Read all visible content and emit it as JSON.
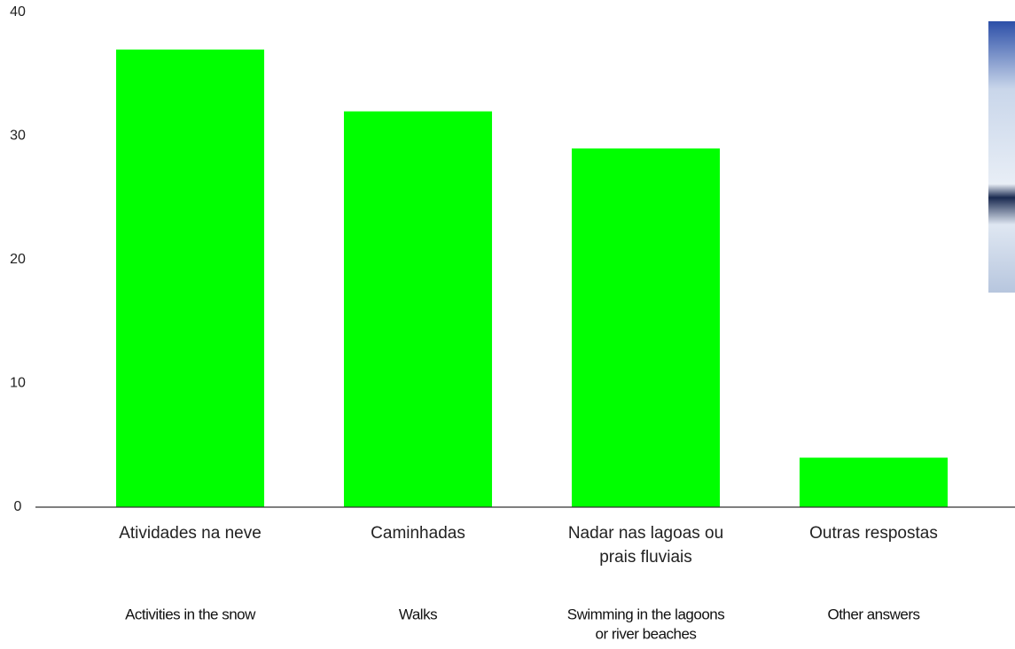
{
  "chart_data": {
    "type": "bar",
    "categories": [
      [
        "Atividades na neve"
      ],
      [
        "Caminhadas"
      ],
      [
        "Nadar nas lagoas ou",
        "prais fluviais"
      ],
      [
        "Outras respostas"
      ]
    ],
    "translations": [
      [
        "Activities in the snow"
      ],
      [
        "Walks"
      ],
      [
        "Swimming in the lagoons",
        "or river beaches"
      ],
      [
        "Other answers"
      ]
    ],
    "values": [
      37,
      32,
      29,
      4
    ],
    "color": "#00ff00",
    "ylim": [
      0,
      40
    ],
    "yticks": [
      0,
      10,
      20,
      30,
      40
    ],
    "grid": false
  }
}
